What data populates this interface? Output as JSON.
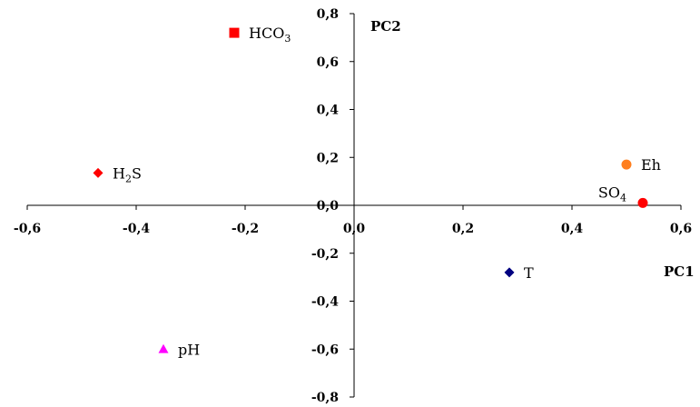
{
  "chart_data": {
    "type": "scatter",
    "title": "",
    "xlabel": "PC1",
    "ylabel": "PC2",
    "xlim": [
      -0.6,
      0.6
    ],
    "ylim": [
      -0.8,
      0.8
    ],
    "xticks": [
      "-0,6",
      "-0,4",
      "-0,2",
      "0,0",
      "0,2",
      "0,4",
      "0,6"
    ],
    "yticks": [
      "0,8",
      "0,6",
      "0,4",
      "0,2",
      "0,0",
      "-0,2",
      "-0,4",
      "-0,6",
      "-0,8"
    ],
    "grid": false,
    "points": [
      {
        "label": "HCO3",
        "base": "HCO",
        "sub": "3",
        "x": -0.22,
        "y": 0.72,
        "color": "#ff0000",
        "marker": "square"
      },
      {
        "label": "H2S",
        "base": "H",
        "sub": "2",
        "tail": "S",
        "x": -0.47,
        "y": 0.135,
        "color": "#ff0000",
        "marker": "diamond"
      },
      {
        "label": "pH",
        "base": "pH",
        "x": -0.35,
        "y": -0.6,
        "color": "#ff00ff",
        "marker": "triangle"
      },
      {
        "label": "Eh",
        "base": "Eh",
        "x": 0.5,
        "y": 0.17,
        "color": "#ff7f1f",
        "marker": "circle"
      },
      {
        "label": "SO4",
        "base": "SO",
        "sub": "4",
        "x": 0.53,
        "y": 0.01,
        "color": "#ff0000",
        "marker": "circle"
      },
      {
        "label": "T",
        "base": "T",
        "x": 0.285,
        "y": -0.28,
        "color": "#000080",
        "marker": "diamond"
      }
    ]
  }
}
